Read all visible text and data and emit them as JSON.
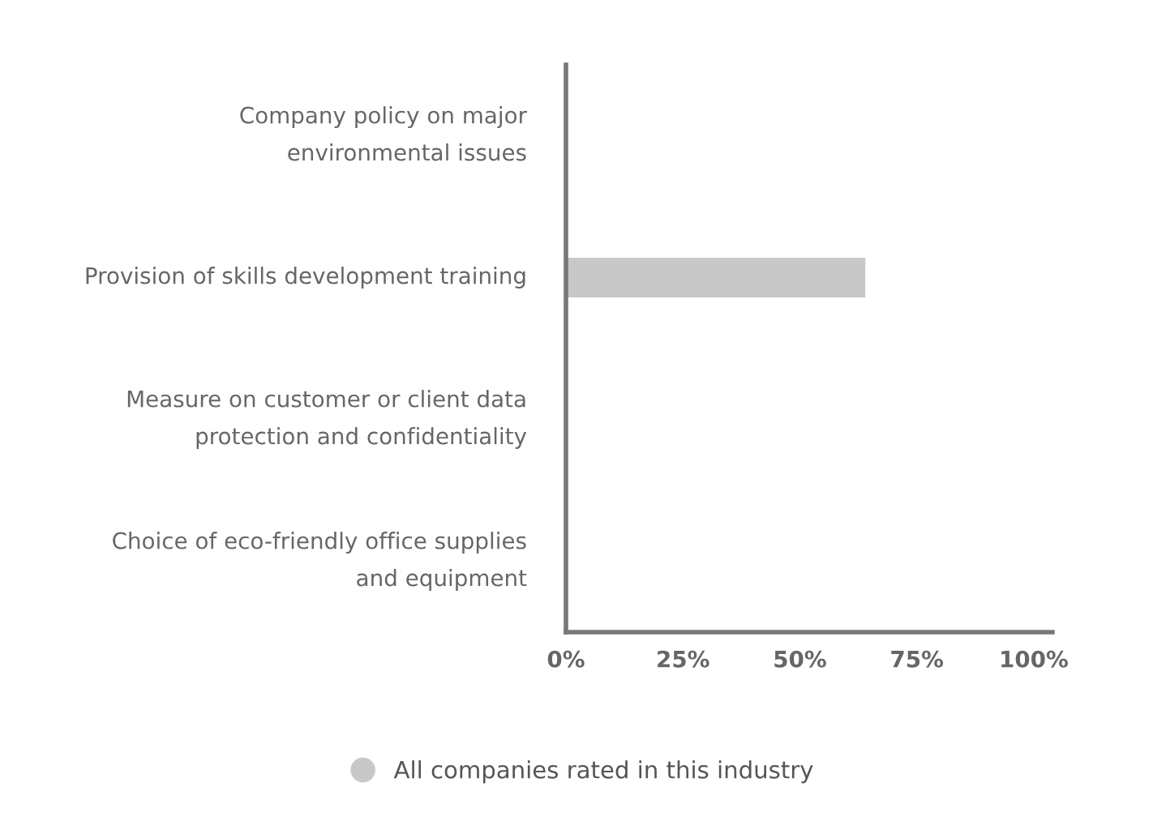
{
  "chart_data": {
    "type": "bar",
    "orientation": "horizontal",
    "categories": [
      "Company policy on major environmental issues",
      "Provision of skills development training",
      "Measure on customer or client data protection and confidentiality",
      "Choice of eco-friendly office supplies and equipment"
    ],
    "series": [
      {
        "name": "All companies rated in this industry",
        "color": "#c8c8c8",
        "values": [
          0,
          64,
          0,
          0
        ]
      }
    ],
    "xlim": [
      0,
      104
    ],
    "xticks": [
      {
        "value": 0,
        "label": "0%"
      },
      {
        "value": 25,
        "label": "25%"
      },
      {
        "value": 50,
        "label": "50%"
      },
      {
        "value": 75,
        "label": "75%"
      },
      {
        "value": 100,
        "label": "100%"
      }
    ],
    "grid": false,
    "legend": "bottom"
  }
}
